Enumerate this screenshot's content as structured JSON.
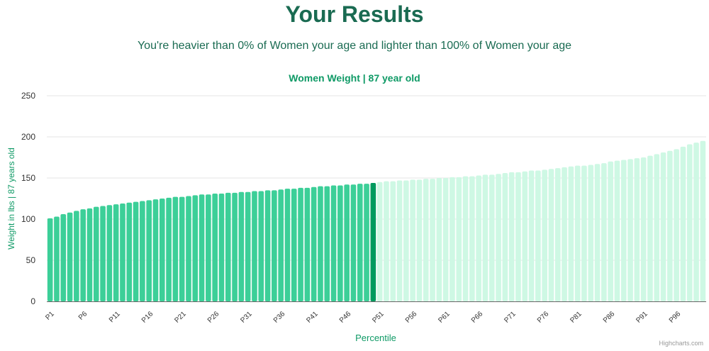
{
  "header": {
    "title": "Your Results",
    "subtitle": "You're heavier than 0% of Women your age and lighter than 100% of Women your age"
  },
  "credit": "Highcharts.com",
  "colors": {
    "bar_filled": "#3ccf98",
    "bar_highlight": "#009a5e",
    "bar_remaining": "#cef8e4",
    "title": "#1a6b52",
    "accent_text": "#0f9a66",
    "grid": "#e6e6e6"
  },
  "chart_data": {
    "type": "bar",
    "title": "Women Weight | 87 year old",
    "xlabel": "Percentile",
    "ylabel": "Weight in lbs | 87 years old",
    "ylim": [
      0,
      250
    ],
    "yticks": [
      "0",
      "50",
      "100",
      "150",
      "200",
      "250"
    ],
    "grid": true,
    "categories": [
      "P1",
      "P2",
      "P3",
      "P4",
      "P5",
      "P6",
      "P7",
      "P8",
      "P9",
      "P10",
      "P11",
      "P12",
      "P13",
      "P14",
      "P15",
      "P16",
      "P17",
      "P18",
      "P19",
      "P20",
      "P21",
      "P22",
      "P23",
      "P24",
      "P25",
      "P26",
      "P27",
      "P28",
      "P29",
      "P30",
      "P31",
      "P32",
      "P33",
      "P34",
      "P35",
      "P36",
      "P37",
      "P38",
      "P39",
      "P40",
      "P41",
      "P42",
      "P43",
      "P44",
      "P45",
      "P46",
      "P47",
      "P48",
      "P49",
      "P50",
      "P51",
      "P52",
      "P53",
      "P54",
      "P55",
      "P56",
      "P57",
      "P58",
      "P59",
      "P60",
      "P61",
      "P62",
      "P63",
      "P64",
      "P65",
      "P66",
      "P67",
      "P68",
      "P69",
      "P70",
      "P71",
      "P72",
      "P73",
      "P74",
      "P75",
      "P76",
      "P77",
      "P78",
      "P79",
      "P80",
      "P81",
      "P82",
      "P83",
      "P84",
      "P85",
      "P86",
      "P87",
      "P88",
      "P89",
      "P90",
      "P91",
      "P92",
      "P93",
      "P94",
      "P95",
      "P96",
      "P97",
      "P98",
      "P99",
      "P100"
    ],
    "tick_labels": [
      "P1",
      "P6",
      "P11",
      "P16",
      "P21",
      "P26",
      "P31",
      "P36",
      "P41",
      "P46",
      "P51",
      "P56",
      "P61",
      "P66",
      "P71",
      "P76",
      "P81",
      "P86",
      "P91",
      "P96"
    ],
    "values": [
      101,
      103,
      106,
      108,
      110,
      112,
      113,
      115,
      116,
      117,
      118,
      119,
      120,
      121,
      122,
      123,
      124,
      125,
      126,
      127,
      127,
      128,
      129,
      130,
      130,
      131,
      131,
      132,
      132,
      133,
      133,
      134,
      134,
      135,
      135,
      136,
      137,
      137,
      138,
      138,
      139,
      140,
      140,
      141,
      141,
      142,
      142,
      143,
      143,
      144,
      145,
      146,
      146,
      147,
      147,
      148,
      148,
      149,
      149,
      150,
      150,
      151,
      151,
      152,
      152,
      153,
      154,
      154,
      155,
      156,
      157,
      157,
      158,
      159,
      159,
      160,
      161,
      162,
      163,
      164,
      165,
      165,
      166,
      167,
      168,
      170,
      171,
      172,
      173,
      174,
      175,
      177,
      179,
      181,
      183,
      185,
      188,
      191,
      193,
      195
    ],
    "highlight_index": 49,
    "filled_through_index": 49
  }
}
